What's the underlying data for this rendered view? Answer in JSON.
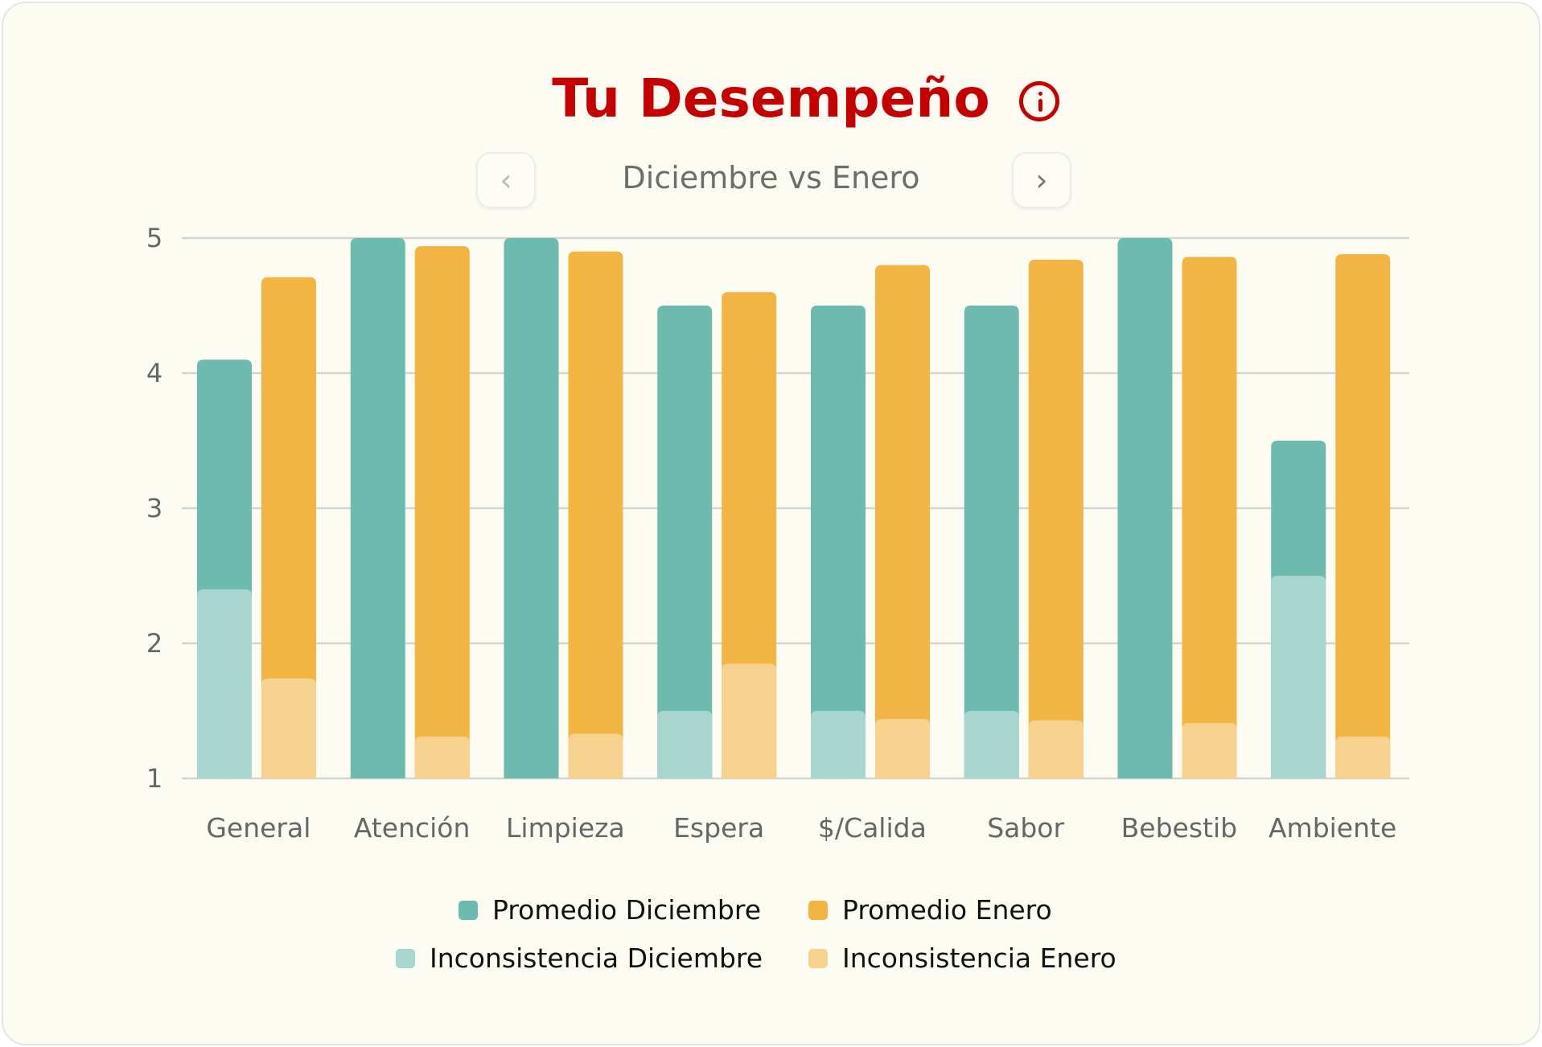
{
  "header": {
    "title": "Tu Desempeño",
    "subtitle": "Diciembre vs Enero",
    "prev_icon": "chevron-left-icon",
    "next_icon": "chevron-right-icon",
    "info_icon": "info-icon"
  },
  "colors": {
    "title": "#c40000",
    "promedio_diciembre": "#6dbaae",
    "inconsistencia_diciembre": "#a8d6cf",
    "promedio_enero": "#f2b443",
    "inconsistencia_enero": "#f7d28e"
  },
  "chart_data": {
    "type": "bar",
    "categories": [
      "General",
      "Atención",
      "Limpieza",
      "Espera",
      "$/Calida",
      "Sabor",
      "Bebestib",
      "Ambiente"
    ],
    "ylim": [
      1,
      5
    ],
    "yticks": [
      "1",
      "2",
      "3",
      "4",
      "5"
    ],
    "grid": true,
    "legend_position": "bottom",
    "series": [
      {
        "name": "Promedio Diciembre",
        "values": [
          4.1,
          5,
          5,
          4.5,
          4.5,
          4.5,
          5,
          3.5
        ]
      },
      {
        "name": "Inconsistencia Diciembre",
        "values": [
          2.4,
          1,
          1,
          1.5,
          1.5,
          1.5,
          1,
          2.5
        ]
      },
      {
        "name": "Promedio Enero",
        "values": [
          4.71,
          4.94,
          4.9,
          4.6,
          4.8,
          4.84,
          4.86,
          4.88
        ]
      },
      {
        "name": "Inconsistencia Enero",
        "values": [
          1.74,
          1.31,
          1.33,
          1.85,
          1.44,
          1.43,
          1.41,
          1.31
        ]
      }
    ]
  }
}
